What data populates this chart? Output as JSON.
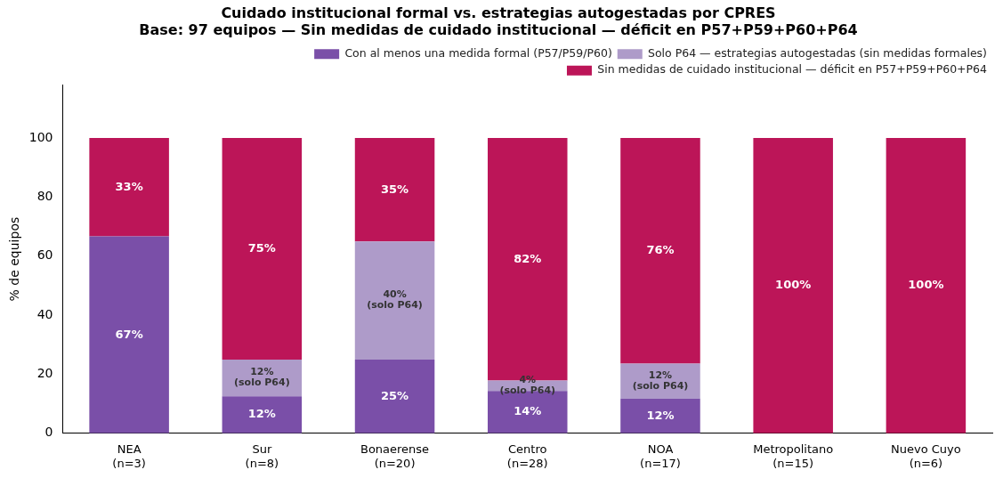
{
  "chart_data": {
    "type": "bar",
    "stacked": true,
    "title": "Cuidado institucional formal vs. estrategias autogestadas por CPRES\nBase: 97 equipos — Sin medidas de cuidado institucional — déficit en P57+P59+P60+P64",
    "ylabel": "% de equipos",
    "categories": [
      "NEA\n(n=3)",
      "Sur\n(n=8)",
      "Bonaerense\n(n=20)",
      "Centro\n(n=28)",
      "NOA\n(n=17)",
      "Metropolitano\n(n=15)",
      "Nuevo Cuyo\n(n=6)"
    ],
    "series": [
      {
        "name": "Con al menos una medida formal (P57/P59/P60)",
        "color": "#7a4fa8",
        "values": [
          66.7,
          12.5,
          25,
          14.3,
          11.8,
          0,
          0
        ],
        "value_labels": [
          "67%",
          "12%",
          "25%",
          "14%",
          "12%",
          null,
          null
        ]
      },
      {
        "name": "Solo P64 — estrategias autogestadas (sin medidas formales)",
        "color": "#ae9bc9",
        "values": [
          0,
          12.5,
          40,
          3.6,
          11.8,
          0,
          0
        ],
        "value_labels": [
          null,
          "12%\n(solo P64)",
          "40%\n(solo P64)",
          "4%\n(solo P64)",
          "12%\n(solo P64)",
          null,
          null
        ]
      },
      {
        "name": "Sin medidas de cuidado institucional — déficit en P57+P59+P60+P64",
        "color": "#bc1558",
        "values": [
          33.3,
          75,
          35,
          82.1,
          76.4,
          100,
          100
        ],
        "value_labels": [
          "33%",
          "75%",
          "35%",
          "82%",
          "76%",
          "100%",
          "100%"
        ]
      }
    ],
    "ylim": [
      0,
      118
    ],
    "yticks": [
      0,
      20,
      40,
      60,
      80,
      100
    ],
    "grid": false,
    "legend": "top right"
  }
}
